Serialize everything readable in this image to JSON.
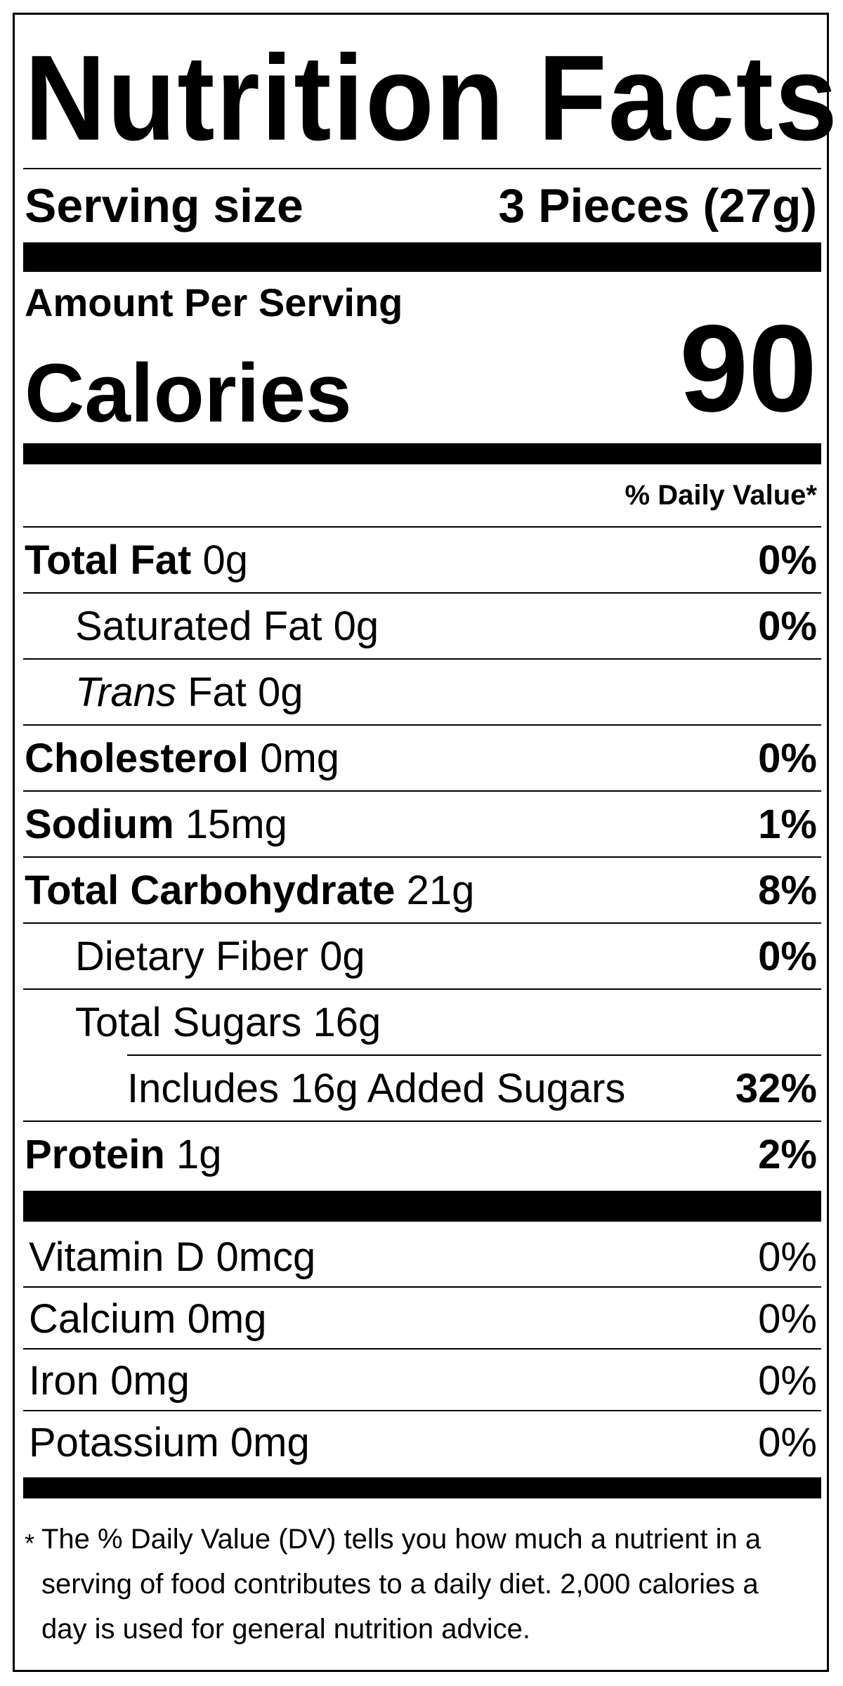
{
  "label": {
    "title": "Nutrition Facts",
    "serving_size_label": "Serving size",
    "serving_size_value": "3 Pieces (27g)",
    "amount_per_serving": "Amount Per Serving",
    "calories_label": "Calories",
    "calories_value": "90",
    "daily_value_header": "% Daily Value*",
    "nutrients": [
      {
        "name": "Total Fat",
        "amount": "0g",
        "dv": "0%"
      },
      {
        "name": "Saturated Fat",
        "amount": "0g",
        "dv": "0%"
      },
      {
        "name": "Trans",
        "name_rest": "Fat",
        "amount": "0g",
        "dv": ""
      },
      {
        "name": "Cholesterol",
        "amount": "0mg",
        "dv": "0%"
      },
      {
        "name": "Sodium",
        "amount": "15mg",
        "dv": "1%"
      },
      {
        "name": "Total Carbohydrate",
        "amount": "21g",
        "dv": "8%"
      },
      {
        "name": "Dietary Fiber",
        "amount": "0g",
        "dv": "0%"
      },
      {
        "name": "Total Sugars",
        "amount": "16g",
        "dv": ""
      },
      {
        "name": "Includes 16g Added Sugars",
        "amount": "",
        "dv": "32%"
      },
      {
        "name": "Protein",
        "amount": "1g",
        "dv": "2%"
      }
    ],
    "vitamins": [
      {
        "name": "Vitamin D",
        "amount": "0mcg",
        "dv": "0%"
      },
      {
        "name": "Calcium",
        "amount": "0mg",
        "dv": "0%"
      },
      {
        "name": "Iron",
        "amount": "0mg",
        "dv": "0%"
      },
      {
        "name": "Potassium",
        "amount": "0mg",
        "dv": "0%"
      }
    ],
    "footnote_star": "*",
    "footnote_line1": "The % Daily Value (DV) tells you how much a nutrient in a",
    "footnote_line2": "serving of food contributes to a daily diet. 2,000 calories a",
    "footnote_line3": "day is used for general nutrition advice."
  }
}
